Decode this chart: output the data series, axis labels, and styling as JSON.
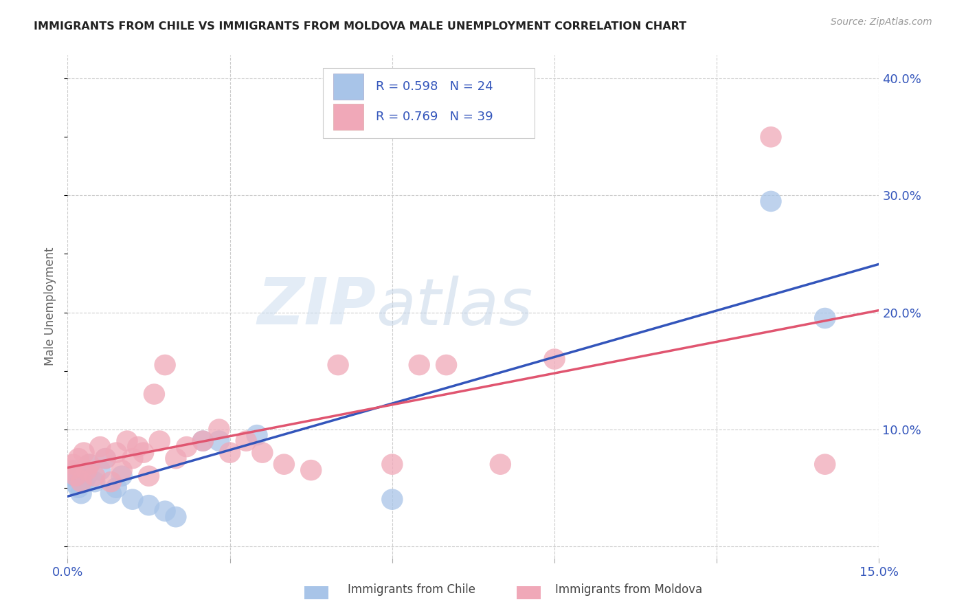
{
  "title": "IMMIGRANTS FROM CHILE VS IMMIGRANTS FROM MOLDOVA MALE UNEMPLOYMENT CORRELATION CHART",
  "source": "Source: ZipAtlas.com",
  "ylabel": "Male Unemployment",
  "x_min": 0.0,
  "x_max": 0.15,
  "y_min": -0.01,
  "y_max": 0.42,
  "y_ticks": [
    0.0,
    0.1,
    0.2,
    0.3,
    0.4
  ],
  "x_ticks": [
    0.0,
    0.03,
    0.06,
    0.09,
    0.12,
    0.15
  ],
  "x_tick_labels": [
    "0.0%",
    "",
    "",
    "",
    "",
    "15.0%"
  ],
  "y_tick_labels": [
    "",
    "10.0%",
    "20.0%",
    "30.0%",
    "40.0%"
  ],
  "chile_color": "#a8c4e8",
  "moldova_color": "#f0a8b8",
  "chile_line_color": "#3355bb",
  "moldova_line_color": "#e05570",
  "text_color": "#3355bb",
  "chile_R": "0.598",
  "chile_N": "24",
  "moldova_R": "0.769",
  "moldova_N": "39",
  "watermark_zip": "ZIP",
  "watermark_atlas": "atlas",
  "background_color": "#ffffff",
  "grid_color": "#cccccc",
  "chile_x": [
    0.0005,
    0.001,
    0.0015,
    0.002,
    0.0025,
    0.003,
    0.0035,
    0.004,
    0.005,
    0.006,
    0.007,
    0.008,
    0.009,
    0.01,
    0.012,
    0.015,
    0.018,
    0.02,
    0.025,
    0.028,
    0.035,
    0.06,
    0.13,
    0.14
  ],
  "chile_y": [
    0.06,
    0.055,
    0.065,
    0.05,
    0.045,
    0.055,
    0.06,
    0.07,
    0.055,
    0.065,
    0.075,
    0.045,
    0.05,
    0.06,
    0.04,
    0.035,
    0.03,
    0.025,
    0.09,
    0.09,
    0.095,
    0.04,
    0.295,
    0.195
  ],
  "moldova_x": [
    0.0005,
    0.001,
    0.0015,
    0.002,
    0.0025,
    0.003,
    0.0035,
    0.004,
    0.005,
    0.006,
    0.007,
    0.008,
    0.009,
    0.01,
    0.011,
    0.012,
    0.013,
    0.014,
    0.015,
    0.016,
    0.017,
    0.018,
    0.02,
    0.022,
    0.025,
    0.028,
    0.03,
    0.033,
    0.036,
    0.04,
    0.045,
    0.05,
    0.06,
    0.065,
    0.07,
    0.08,
    0.09,
    0.13,
    0.14
  ],
  "moldova_y": [
    0.065,
    0.07,
    0.06,
    0.075,
    0.055,
    0.08,
    0.065,
    0.07,
    0.06,
    0.085,
    0.075,
    0.055,
    0.08,
    0.065,
    0.09,
    0.075,
    0.085,
    0.08,
    0.06,
    0.13,
    0.09,
    0.155,
    0.075,
    0.085,
    0.09,
    0.1,
    0.08,
    0.09,
    0.08,
    0.07,
    0.065,
    0.155,
    0.07,
    0.155,
    0.155,
    0.07,
    0.16,
    0.35,
    0.07
  ]
}
